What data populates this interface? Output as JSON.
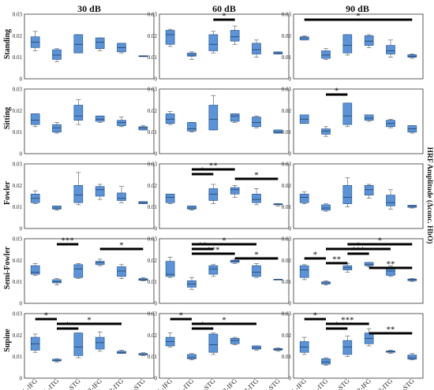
{
  "figure": {
    "columns": [
      "30 dB",
      "60 dB",
      "90 dB"
    ],
    "rows": [
      "Standing",
      "Sitting",
      "Fowler",
      "Semi-Fowler",
      "Supine"
    ],
    "categories": [
      "L-IFG",
      "L-ITG",
      "L-STG",
      "R-IFG",
      "R-ITG",
      "R-STG"
    ],
    "ylabel": "HRF Amplitude (Δconc. HbO)",
    "yticks": [
      "0",
      "0.01",
      "0.02",
      "0.03"
    ]
  },
  "chart_data": {
    "type": "box",
    "ylim": [
      0,
      0.03
    ],
    "grid": true,
    "panels": [
      {
        "row": "Standing",
        "column": "30 dB",
        "boxes": [
          {
            "min": 0.013,
            "q1": 0.0145,
            "median": 0.017,
            "q3": 0.0195,
            "max": 0.022
          },
          {
            "min": 0.008,
            "q1": 0.009,
            "median": 0.011,
            "q3": 0.0135,
            "max": 0.014
          },
          {
            "min": 0.012,
            "q1": 0.012,
            "median": 0.016,
            "q3": 0.0205,
            "max": 0.0205
          },
          {
            "min": 0.013,
            "q1": 0.014,
            "median": 0.017,
            "q3": 0.019,
            "max": 0.019
          },
          {
            "min": 0.012,
            "q1": 0.0125,
            "median": 0.0145,
            "q3": 0.0165,
            "max": 0.0165
          },
          {
            "min": 0.0103,
            "q1": 0.0103,
            "median": 0.0105,
            "q3": 0.0107,
            "max": 0.0107
          }
        ],
        "significance": []
      },
      {
        "row": "Standing",
        "column": "60 dB",
        "boxes": [
          {
            "min": 0.015,
            "q1": 0.016,
            "median": 0.0205,
            "q3": 0.0225,
            "max": 0.023
          },
          {
            "min": 0.009,
            "q1": 0.0105,
            "median": 0.011,
            "q3": 0.012,
            "max": 0.0125
          },
          {
            "min": 0.012,
            "q1": 0.013,
            "median": 0.016,
            "q3": 0.0205,
            "max": 0.022
          },
          {
            "min": 0.016,
            "q1": 0.0175,
            "median": 0.0195,
            "q3": 0.0225,
            "max": 0.0245
          },
          {
            "min": 0.01,
            "q1": 0.0115,
            "median": 0.0135,
            "q3": 0.0165,
            "max": 0.018
          },
          {
            "min": 0.0115,
            "q1": 0.0115,
            "median": 0.012,
            "q3": 0.0125,
            "max": 0.0125
          }
        ],
        "significance": [
          {
            "from": 2,
            "to": 3,
            "label": "*"
          }
        ]
      },
      {
        "row": "Standing",
        "column": "90 dB",
        "boxes": [
          {
            "min": 0.018,
            "q1": 0.018,
            "median": 0.019,
            "q3": 0.0195,
            "max": 0.02
          },
          {
            "min": 0.009,
            "q1": 0.0095,
            "median": 0.011,
            "q3": 0.013,
            "max": 0.014
          },
          {
            "min": 0.011,
            "q1": 0.012,
            "median": 0.0155,
            "q3": 0.0205,
            "max": 0.0205
          },
          {
            "min": 0.0145,
            "q1": 0.0155,
            "median": 0.0175,
            "q3": 0.02,
            "max": 0.0205
          },
          {
            "min": 0.01,
            "q1": 0.0115,
            "median": 0.013,
            "q3": 0.0155,
            "max": 0.018
          },
          {
            "min": 0.0095,
            "q1": 0.01,
            "median": 0.0105,
            "q3": 0.0112,
            "max": 0.0115
          }
        ],
        "significance": [
          {
            "from": 0,
            "to": 5,
            "label": "*"
          }
        ]
      },
      {
        "row": "Sitting",
        "column": "30 dB",
        "boxes": [
          {
            "min": 0.0125,
            "q1": 0.0135,
            "median": 0.0155,
            "q3": 0.0185,
            "max": 0.0185
          },
          {
            "min": 0.0095,
            "q1": 0.01,
            "median": 0.012,
            "q3": 0.0135,
            "max": 0.0145
          },
          {
            "min": 0.0135,
            "q1": 0.0155,
            "median": 0.0175,
            "q3": 0.0225,
            "max": 0.025
          },
          {
            "min": 0.0145,
            "q1": 0.015,
            "median": 0.016,
            "q3": 0.0175,
            "max": 0.0175
          },
          {
            "min": 0.0125,
            "q1": 0.013,
            "median": 0.0145,
            "q3": 0.0155,
            "max": 0.017
          },
          {
            "min": 0.011,
            "q1": 0.011,
            "median": 0.012,
            "q3": 0.0125,
            "max": 0.013
          }
        ],
        "significance": []
      },
      {
        "row": "Sitting",
        "column": "60 dB",
        "boxes": [
          {
            "min": 0.0135,
            "q1": 0.014,
            "median": 0.016,
            "q3": 0.0185,
            "max": 0.0195
          },
          {
            "min": 0.01,
            "q1": 0.0105,
            "median": 0.0115,
            "q3": 0.0145,
            "max": 0.0145
          },
          {
            "min": 0.011,
            "q1": 0.011,
            "median": 0.016,
            "q3": 0.0225,
            "max": 0.027
          },
          {
            "min": 0.0145,
            "q1": 0.015,
            "median": 0.0175,
            "q3": 0.0185,
            "max": 0.0185
          },
          {
            "min": 0.012,
            "q1": 0.0125,
            "median": 0.0145,
            "q3": 0.017,
            "max": 0.0175
          },
          {
            "min": 0.0095,
            "q1": 0.0095,
            "median": 0.01,
            "q3": 0.011,
            "max": 0.011
          }
        ],
        "significance": []
      },
      {
        "row": "Sitting",
        "column": "90 dB",
        "boxes": [
          {
            "min": 0.014,
            "q1": 0.014,
            "median": 0.016,
            "q3": 0.018,
            "max": 0.018
          },
          {
            "min": 0.008,
            "q1": 0.009,
            "median": 0.0105,
            "q3": 0.0115,
            "max": 0.0125
          },
          {
            "min": 0.0125,
            "q1": 0.0135,
            "median": 0.0175,
            "q3": 0.0235,
            "max": 0.0235
          },
          {
            "min": 0.015,
            "q1": 0.0155,
            "median": 0.0165,
            "q3": 0.018,
            "max": 0.018
          },
          {
            "min": 0.012,
            "q1": 0.0125,
            "median": 0.014,
            "q3": 0.0155,
            "max": 0.016
          },
          {
            "min": 0.0095,
            "q1": 0.01,
            "median": 0.0115,
            "q3": 0.013,
            "max": 0.013
          }
        ],
        "significance": [
          {
            "from": 1,
            "to": 2,
            "label": "*"
          }
        ]
      },
      {
        "row": "Fowler",
        "column": "30 dB",
        "boxes": [
          {
            "min": 0.0115,
            "q1": 0.012,
            "median": 0.014,
            "q3": 0.016,
            "max": 0.0175
          },
          {
            "min": 0.0085,
            "q1": 0.009,
            "median": 0.0095,
            "q3": 0.0105,
            "max": 0.0105
          },
          {
            "min": 0.011,
            "q1": 0.012,
            "median": 0.0155,
            "q3": 0.02,
            "max": 0.026
          },
          {
            "min": 0.0135,
            "q1": 0.015,
            "median": 0.018,
            "q3": 0.0195,
            "max": 0.0205
          },
          {
            "min": 0.012,
            "q1": 0.013,
            "median": 0.014,
            "q3": 0.0165,
            "max": 0.0195
          },
          {
            "min": 0.0115,
            "q1": 0.0115,
            "median": 0.012,
            "q3": 0.0125,
            "max": 0.0125
          }
        ],
        "significance": []
      },
      {
        "row": "Fowler",
        "column": "60 dB",
        "boxes": [
          {
            "min": 0.0115,
            "q1": 0.012,
            "median": 0.0145,
            "q3": 0.016,
            "max": 0.016
          },
          {
            "min": 0.0085,
            "q1": 0.009,
            "median": 0.0095,
            "q3": 0.0105,
            "max": 0.0105
          },
          {
            "min": 0.0115,
            "q1": 0.013,
            "median": 0.016,
            "q3": 0.0185,
            "max": 0.0205
          },
          {
            "min": 0.0145,
            "q1": 0.016,
            "median": 0.018,
            "q3": 0.019,
            "max": 0.02
          },
          {
            "min": 0.011,
            "q1": 0.012,
            "median": 0.0135,
            "q3": 0.016,
            "max": 0.0185
          },
          {
            "min": 0.0105,
            "q1": 0.011,
            "median": 0.0113,
            "q3": 0.0115,
            "max": 0.0115
          }
        ],
        "significance": [
          {
            "from": 1,
            "to": 3,
            "label": "**"
          },
          {
            "from": 1,
            "to": 2,
            "label": "*"
          },
          {
            "from": 3,
            "to": 5,
            "label": "*"
          }
        ]
      },
      {
        "row": "Fowler",
        "column": "90 dB",
        "boxes": [
          {
            "min": 0.0115,
            "q1": 0.012,
            "median": 0.0145,
            "q3": 0.016,
            "max": 0.017
          },
          {
            "min": 0.008,
            "q1": 0.0085,
            "median": 0.0095,
            "q3": 0.011,
            "max": 0.0115
          },
          {
            "min": 0.01,
            "q1": 0.0115,
            "median": 0.0145,
            "q3": 0.02,
            "max": 0.0235
          },
          {
            "min": 0.014,
            "q1": 0.0155,
            "median": 0.018,
            "q3": 0.02,
            "max": 0.0205
          },
          {
            "min": 0.009,
            "q1": 0.0105,
            "median": 0.012,
            "q3": 0.0155,
            "max": 0.018
          },
          {
            "min": 0.0095,
            "q1": 0.0098,
            "median": 0.0103,
            "q3": 0.0108,
            "max": 0.0108
          }
        ],
        "significance": []
      },
      {
        "row": "Semi-Fowler",
        "column": "30 dB",
        "boxes": [
          {
            "min": 0.013,
            "q1": 0.0135,
            "median": 0.0145,
            "q3": 0.0175,
            "max": 0.0185
          },
          {
            "min": 0.0085,
            "q1": 0.0095,
            "median": 0.01,
            "q3": 0.011,
            "max": 0.0115
          },
          {
            "min": 0.0115,
            "q1": 0.012,
            "median": 0.016,
            "q3": 0.018,
            "max": 0.0185
          },
          {
            "min": 0.0175,
            "q1": 0.018,
            "median": 0.019,
            "q3": 0.0195,
            "max": 0.0205
          },
          {
            "min": 0.0115,
            "q1": 0.0125,
            "median": 0.015,
            "q3": 0.017,
            "max": 0.018
          },
          {
            "min": 0.0105,
            "q1": 0.0107,
            "median": 0.011,
            "q3": 0.0115,
            "max": 0.012
          }
        ],
        "significance": [
          {
            "from": 1,
            "to": 2,
            "label": "***"
          },
          {
            "from": 3,
            "to": 5,
            "label": "*"
          }
        ]
      },
      {
        "row": "Semi-Fowler",
        "column": "60 dB",
        "boxes": [
          {
            "min": 0.012,
            "q1": 0.0125,
            "median": 0.0135,
            "q3": 0.0195,
            "max": 0.0215
          },
          {
            "min": 0.0065,
            "q1": 0.0075,
            "median": 0.009,
            "q3": 0.0105,
            "max": 0.012
          },
          {
            "min": 0.0125,
            "q1": 0.0135,
            "median": 0.016,
            "q3": 0.0175,
            "max": 0.018
          },
          {
            "min": 0.0185,
            "q1": 0.019,
            "median": 0.0195,
            "q3": 0.02,
            "max": 0.0205
          },
          {
            "min": 0.012,
            "q1": 0.0125,
            "median": 0.0145,
            "q3": 0.0175,
            "max": 0.0185
          },
          {
            "min": 0.011,
            "q1": 0.011,
            "median": 0.011,
            "q3": 0.0112,
            "max": 0.0112
          }
        ],
        "significance": [
          {
            "from": 1,
            "to": 4,
            "label": "*"
          },
          {
            "from": 1,
            "to": 2,
            "label": "**"
          },
          {
            "from": 1,
            "to": 3,
            "label": "***"
          },
          {
            "from": 3,
            "to": 5,
            "label": "*"
          }
        ]
      },
      {
        "row": "Semi-Fowler",
        "column": "90 dB",
        "boxes": [
          {
            "min": 0.011,
            "q1": 0.012,
            "median": 0.0155,
            "q3": 0.0175,
            "max": 0.018
          },
          {
            "min": 0.0085,
            "q1": 0.009,
            "median": 0.0095,
            "q3": 0.01,
            "max": 0.0105
          },
          {
            "min": 0.0145,
            "q1": 0.0155,
            "median": 0.0165,
            "q3": 0.0175,
            "max": 0.0185
          },
          {
            "min": 0.017,
            "q1": 0.0175,
            "median": 0.018,
            "q3": 0.019,
            "max": 0.019
          },
          {
            "min": 0.0125,
            "q1": 0.013,
            "median": 0.015,
            "q3": 0.0165,
            "max": 0.0175
          },
          {
            "min": 0.0102,
            "q1": 0.0105,
            "median": 0.011,
            "q3": 0.0113,
            "max": 0.0115
          }
        ],
        "significance": [
          {
            "from": 2,
            "to": 5,
            "label": "*"
          },
          {
            "from": 1,
            "to": 4,
            "label": "*"
          },
          {
            "from": 2,
            "to": 3,
            "label": "***"
          },
          {
            "from": 0,
            "to": 1,
            "label": "*"
          },
          {
            "from": 1,
            "to": 2,
            "label": "**"
          },
          {
            "from": 3,
            "to": 5,
            "label": "**"
          }
        ]
      },
      {
        "row": "Supine",
        "column": "30 dB",
        "boxes": [
          {
            "min": 0.012,
            "q1": 0.013,
            "median": 0.016,
            "q3": 0.019,
            "max": 0.0205
          },
          {
            "min": 0.0075,
            "q1": 0.008,
            "median": 0.0082,
            "q3": 0.0088,
            "max": 0.009
          },
          {
            "min": 0.0095,
            "q1": 0.0105,
            "median": 0.0145,
            "q3": 0.021,
            "max": 0.021
          },
          {
            "min": 0.0125,
            "q1": 0.0135,
            "median": 0.0165,
            "q3": 0.019,
            "max": 0.0215
          },
          {
            "min": 0.0115,
            "q1": 0.0115,
            "median": 0.012,
            "q3": 0.0125,
            "max": 0.013
          },
          {
            "min": 0.0105,
            "q1": 0.0108,
            "median": 0.011,
            "q3": 0.0115,
            "max": 0.0118
          }
        ],
        "significance": [
          {
            "from": 0,
            "to": 1,
            "label": "*"
          },
          {
            "from": 1,
            "to": 4,
            "label": "*"
          },
          {
            "from": 1,
            "to": 2,
            "label": "*"
          }
        ]
      },
      {
        "row": "Supine",
        "column": "60 dB",
        "boxes": [
          {
            "min": 0.0145,
            "q1": 0.015,
            "median": 0.017,
            "q3": 0.019,
            "max": 0.021
          },
          {
            "min": 0.0085,
            "q1": 0.009,
            "median": 0.0095,
            "q3": 0.011,
            "max": 0.0115
          },
          {
            "min": 0.011,
            "q1": 0.012,
            "median": 0.0155,
            "q3": 0.0205,
            "max": 0.021
          },
          {
            "min": 0.0155,
            "q1": 0.016,
            "median": 0.0175,
            "q3": 0.0185,
            "max": 0.019
          },
          {
            "min": 0.013,
            "q1": 0.0135,
            "median": 0.014,
            "q3": 0.015,
            "max": 0.015
          },
          {
            "min": 0.0125,
            "q1": 0.013,
            "median": 0.0133,
            "q3": 0.0138,
            "max": 0.014
          }
        ],
        "significance": [
          {
            "from": 0,
            "to": 1,
            "label": "*"
          },
          {
            "from": 1,
            "to": 4,
            "label": "*"
          },
          {
            "from": 1,
            "to": 2,
            "label": "*"
          }
        ]
      },
      {
        "row": "Supine",
        "column": "90 dB",
        "boxes": [
          {
            "min": 0.011,
            "q1": 0.012,
            "median": 0.0145,
            "q3": 0.017,
            "max": 0.019
          },
          {
            "min": 0.006,
            "q1": 0.0065,
            "median": 0.0075,
            "q3": 0.009,
            "max": 0.0095
          },
          {
            "min": 0.01,
            "q1": 0.011,
            "median": 0.0145,
            "q3": 0.0175,
            "max": 0.0195
          },
          {
            "min": 0.015,
            "q1": 0.016,
            "median": 0.0185,
            "q3": 0.021,
            "max": 0.023
          },
          {
            "min": 0.0115,
            "q1": 0.012,
            "median": 0.0122,
            "q3": 0.0127,
            "max": 0.013
          },
          {
            "min": 0.0085,
            "q1": 0.0088,
            "median": 0.0095,
            "q3": 0.0108,
            "max": 0.0115
          }
        ],
        "significance": [
          {
            "from": 0,
            "to": 1,
            "label": "*"
          },
          {
            "from": 1,
            "to": 3,
            "label": "***"
          },
          {
            "from": 1,
            "to": 2,
            "label": "*"
          },
          {
            "from": 3,
            "to": 5,
            "label": "**"
          }
        ]
      }
    ]
  },
  "colors": {
    "box_fill": "#5b93d6",
    "box_edge": "#1f4d86",
    "grid": "#e2e2e2"
  }
}
